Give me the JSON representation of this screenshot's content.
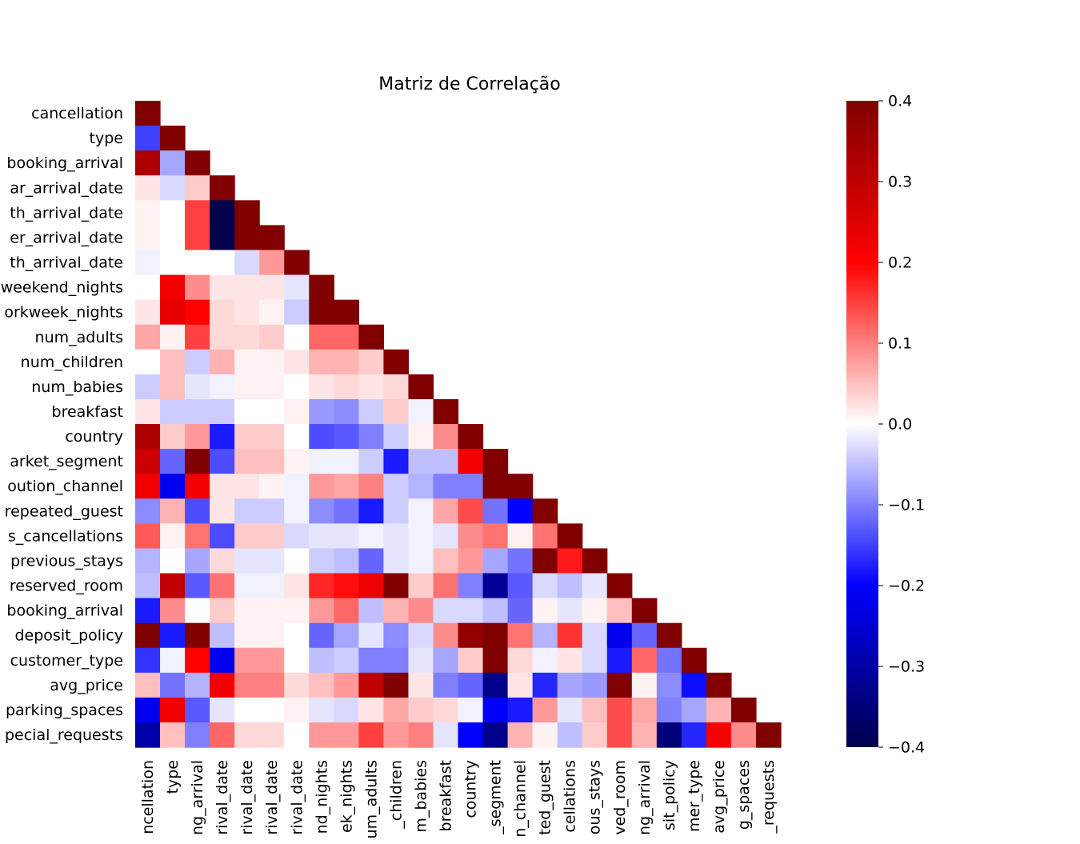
{
  "chart_data": {
    "type": "heatmap",
    "title": "Matriz de Correlação",
    "xlabel": "",
    "ylabel": "",
    "colormap": "seismic",
    "vmin": -0.4,
    "vmax": 0.4,
    "mask": "upper triangle (above diagonal) hidden",
    "colorbar": {
      "ticks": [
        0.4,
        0.3,
        0.2,
        0.1,
        0.0,
        -0.1,
        -0.2,
        -0.3,
        -0.4
      ],
      "tick_labels": [
        "0.4",
        "0.3",
        "0.2",
        "0.1",
        "0.0",
        "−0.1",
        "−0.2",
        "−0.3",
        "−0.4"
      ]
    },
    "row_labels_visible": [
      "cancellation",
      "type",
      "booking_arrival",
      "ar_arrival_date",
      "th_arrival_date",
      "er_arrival_date",
      "th_arrival_date",
      "weekend_nights",
      "orkweek_nights",
      "num_adults",
      "num_children",
      "num_babies",
      "breakfast",
      "country",
      "arket_segment",
      "oution_channel",
      "repeated_guest",
      "s_cancellations",
      "previous_stays",
      "reserved_room",
      "booking_arrival",
      "deposit_policy",
      "customer_type",
      "avg_price",
      "parking_spaces",
      "pecial_requests"
    ],
    "col_labels_visible": [
      "ncellation",
      "type",
      "ng_arrival",
      "rival_date",
      "rival_date",
      "rival_date",
      "rival_date",
      "nd_nights",
      "ek_nights",
      "um_adults",
      "_children",
      "m_babies",
      "breakfast",
      "country",
      "_segment",
      "n_channel",
      "ted_guest",
      "cellations",
      "ous_stays",
      "ved_room",
      "ng_arrival",
      "sit_policy",
      "mer_type",
      "avg_price",
      "g_spaces",
      "_requests"
    ],
    "values": [
      [
        0.4
      ],
      [
        -0.15,
        0.4
      ],
      [
        0.33,
        -0.07,
        0.4
      ],
      [
        0.02,
        -0.03,
        0.04,
        0.4
      ],
      [
        0.01,
        0.0,
        0.15,
        -0.4,
        0.4
      ],
      [
        0.01,
        0.0,
        0.15,
        -0.4,
        0.4,
        0.4
      ],
      [
        -0.01,
        0.0,
        0.0,
        0.0,
        -0.03,
        0.08,
        0.4
      ],
      [
        0.0,
        0.22,
        0.09,
        0.02,
        0.02,
        0.02,
        -0.02,
        0.4
      ],
      [
        0.02,
        0.24,
        0.2,
        0.03,
        0.02,
        0.01,
        -0.04,
        0.4,
        0.4
      ],
      [
        0.07,
        0.01,
        0.15,
        0.03,
        0.03,
        0.04,
        0.0,
        0.12,
        0.12,
        0.4
      ],
      [
        0.0,
        0.05,
        -0.04,
        0.06,
        0.01,
        0.01,
        0.02,
        0.06,
        0.06,
        0.04,
        0.4
      ],
      [
        -0.04,
        0.05,
        -0.02,
        -0.01,
        0.01,
        0.01,
        0.0,
        0.02,
        0.03,
        0.02,
        0.03,
        0.4
      ],
      [
        0.02,
        -0.04,
        -0.04,
        -0.04,
        0.0,
        0.0,
        0.01,
        -0.08,
        -0.09,
        -0.04,
        0.04,
        -0.01,
        0.4
      ],
      [
        0.33,
        0.04,
        0.08,
        -0.18,
        0.04,
        0.04,
        0.0,
        -0.14,
        -0.13,
        -0.1,
        -0.04,
        0.01,
        0.09,
        0.4
      ],
      [
        0.28,
        -0.12,
        0.4,
        -0.14,
        0.05,
        0.05,
        0.01,
        -0.01,
        -0.01,
        -0.04,
        -0.18,
        -0.05,
        -0.05,
        0.22,
        0.4
      ],
      [
        0.22,
        -0.22,
        0.22,
        0.02,
        0.02,
        0.01,
        -0.01,
        0.08,
        0.07,
        0.1,
        -0.04,
        -0.06,
        -0.1,
        -0.1,
        0.4,
        0.4
      ],
      [
        -0.09,
        0.06,
        -0.14,
        0.02,
        -0.04,
        -0.04,
        -0.01,
        -0.09,
        -0.11,
        -0.18,
        -0.04,
        -0.01,
        0.07,
        0.14,
        -0.11,
        -0.2,
        0.4
      ],
      [
        0.13,
        0.01,
        0.11,
        -0.14,
        0.04,
        0.04,
        -0.03,
        -0.02,
        -0.02,
        -0.01,
        -0.02,
        -0.01,
        -0.02,
        0.09,
        0.11,
        0.01,
        0.11,
        0.4
      ],
      [
        -0.06,
        0.0,
        -0.07,
        0.03,
        -0.02,
        -0.02,
        0.0,
        -0.04,
        -0.05,
        -0.12,
        -0.02,
        -0.01,
        0.05,
        0.08,
        -0.07,
        -0.11,
        0.4,
        0.18,
        0.4
      ],
      [
        -0.05,
        0.3,
        -0.13,
        0.11,
        -0.01,
        -0.01,
        0.02,
        0.17,
        0.19,
        0.23,
        0.4,
        0.04,
        0.11,
        -0.1,
        -0.32,
        -0.13,
        -0.03,
        -0.05,
        -0.02,
        0.4
      ],
      [
        -0.18,
        0.09,
        0.0,
        0.04,
        0.01,
        0.01,
        0.01,
        0.08,
        0.12,
        -0.05,
        0.06,
        0.09,
        -0.03,
        -0.03,
        -0.05,
        -0.12,
        0.01,
        -0.02,
        0.01,
        0.05,
        0.4
      ],
      [
        0.4,
        -0.18,
        0.4,
        -0.05,
        0.01,
        0.01,
        0.0,
        -0.12,
        -0.07,
        -0.02,
        -0.09,
        -0.03,
        0.09,
        0.37,
        0.4,
        0.11,
        -0.06,
        0.16,
        -0.03,
        -0.22,
        -0.12,
        0.4
      ],
      [
        -0.16,
        -0.01,
        0.2,
        -0.22,
        0.08,
        0.08,
        0.0,
        -0.05,
        -0.04,
        -0.1,
        -0.1,
        -0.02,
        -0.07,
        0.04,
        0.4,
        0.03,
        -0.01,
        0.02,
        -0.03,
        -0.18,
        0.12,
        -0.11,
        0.4
      ],
      [
        0.05,
        -0.11,
        -0.06,
        0.22,
        0.1,
        0.1,
        0.03,
        0.05,
        0.08,
        0.3,
        0.4,
        0.02,
        -0.1,
        -0.12,
        -0.33,
        0.02,
        -0.17,
        -0.07,
        -0.08,
        0.4,
        0.01,
        -0.09,
        -0.19,
        0.4
      ],
      [
        -0.22,
        0.22,
        -0.13,
        -0.02,
        0.0,
        0.0,
        0.01,
        -0.02,
        -0.03,
        0.02,
        0.07,
        0.04,
        0.03,
        -0.01,
        -0.2,
        -0.18,
        0.08,
        -0.02,
        0.05,
        0.14,
        0.07,
        -0.1,
        -0.07,
        0.06,
        0.4
      ],
      [
        -0.3,
        0.05,
        -0.1,
        0.12,
        0.03,
        0.03,
        0.0,
        0.08,
        0.08,
        0.15,
        0.08,
        0.1,
        -0.02,
        -0.2,
        -0.33,
        0.06,
        0.01,
        -0.05,
        0.04,
        0.14,
        0.06,
        -0.35,
        -0.17,
        0.21,
        0.09,
        0.4
      ]
    ]
  }
}
